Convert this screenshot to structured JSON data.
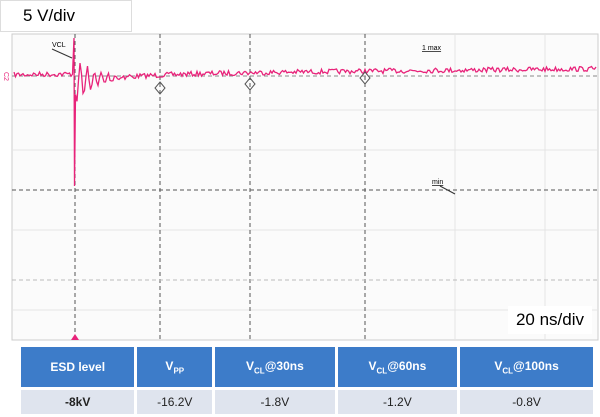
{
  "header": {
    "scale_vertical": "5 V/div",
    "scale_horizontal": "20 ns/div"
  },
  "scope": {
    "channel": "C2",
    "labels": [
      "VCL",
      "1 max",
      "min"
    ]
  },
  "table": {
    "columns": [
      {
        "text": "ESD level"
      },
      {
        "main": "V",
        "sub": "PP"
      },
      {
        "main": "V",
        "sub": "CL",
        "rest": "@30ns"
      },
      {
        "main": "V",
        "sub": "CL",
        "rest": "@60ns"
      },
      {
        "main": "V",
        "sub": "CL",
        "rest": "@100ns"
      }
    ],
    "rows": [
      [
        "-8kV",
        "-16.2V",
        "-1.8V",
        "-1.2V",
        "-0.8V"
      ]
    ]
  }
}
